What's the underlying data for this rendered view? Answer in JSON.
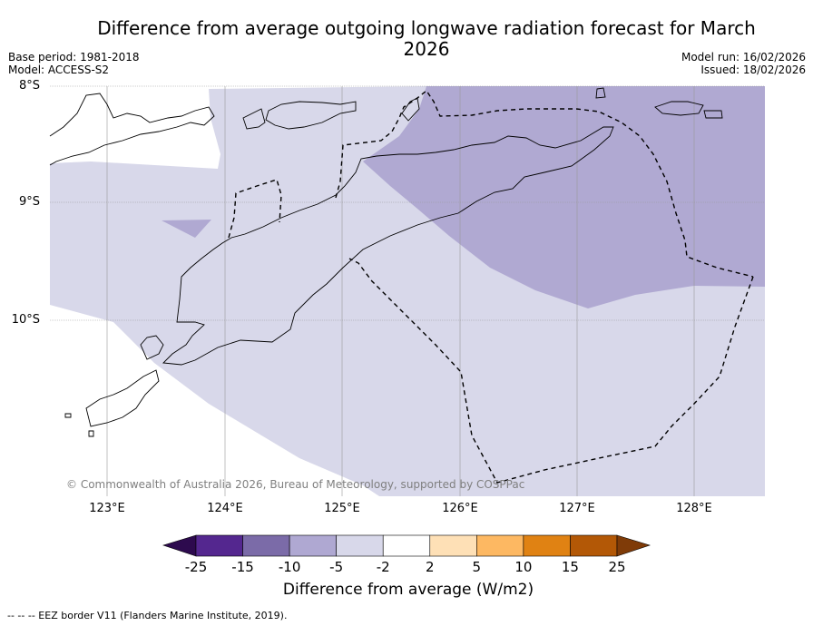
{
  "title": "Difference from average outgoing longwave radiation forecast for March 2026",
  "meta_left": {
    "base_period": "Base period: 1981-2018",
    "model": "Model: ACCESS-S2"
  },
  "meta_right": {
    "model_run": "Model run: 16/02/2026",
    "issued": "Issued: 18/02/2026"
  },
  "latitude_labels": [
    "8°S",
    "9°S",
    "10°S"
  ],
  "longitude_labels": [
    "123°E",
    "124°E",
    "125°E",
    "126°E",
    "127°E",
    "128°E"
  ],
  "copyright": "© Commonwealth of Australia 2026, Bureau of Meteorology, supported by COSPPac",
  "colorbar": {
    "tick_labels": [
      "-25",
      "-15",
      "-10",
      "-5",
      "-2",
      "2",
      "5",
      "10",
      "15",
      "25"
    ],
    "colors": [
      "#2d0a4e",
      "#54278f",
      "#7b6ba8",
      "#afa8d2",
      "#d8d8ea",
      "#ffffff",
      "#fee0b6",
      "#fdb862",
      "#e08213",
      "#b35806",
      "#7f3b08"
    ],
    "title": "Difference from average (W/m2)"
  },
  "map_fills": {
    "light_band": "-5 to -2",
    "dark_band": "-10 to -5",
    "light_color": "#d8d8ea",
    "dark_color": "#b0a9d2"
  },
  "footnote": "--  --  -- EEZ border V11 (Flanders Marine Institute, 2019)."
}
